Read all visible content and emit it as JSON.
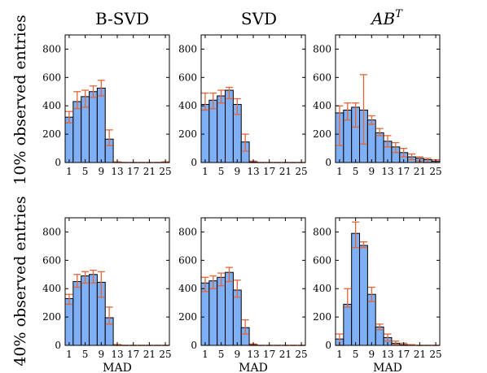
{
  "chart_data": {
    "type": "bar",
    "columns": [
      {
        "title_base": "B-SVD",
        "title_sup": ""
      },
      {
        "title_base": "SVD",
        "title_sup": ""
      },
      {
        "title_base": "AB",
        "title_sup": "T"
      }
    ],
    "rows": [
      {
        "label": "10% observed entries"
      },
      {
        "label": "40% observed entries"
      }
    ],
    "xlabel": "MAD",
    "x_ticks": [
      "1",
      "5",
      "9",
      "13",
      "17",
      "21",
      "25"
    ],
    "y_ticks": [
      "0",
      "200",
      "400",
      "600",
      "800"
    ],
    "ylim": [
      0,
      900
    ],
    "bin_centers": [
      1,
      3,
      5,
      7,
      9,
      11,
      13,
      15,
      17,
      19,
      21,
      23,
      25
    ],
    "colors": {
      "bar": "#7fb0f5",
      "bar_edge": "#000000",
      "error": "#e0663a"
    },
    "panels": [
      {
        "row": 0,
        "col": 0,
        "values": [
          320,
          430,
          465,
          500,
          525,
          165,
          2,
          0,
          0,
          0,
          0,
          0,
          2
        ],
        "err": [
          [
            280,
            360
          ],
          [
            380,
            500
          ],
          [
            390,
            510
          ],
          [
            460,
            540
          ],
          [
            470,
            580
          ],
          [
            120,
            230
          ],
          [
            0,
            5
          ],
          [
            0,
            0
          ],
          [
            0,
            0
          ],
          [
            0,
            0
          ],
          [
            0,
            0
          ],
          [
            0,
            0
          ],
          [
            0,
            5
          ]
        ]
      },
      {
        "row": 0,
        "col": 1,
        "values": [
          410,
          440,
          470,
          510,
          410,
          145,
          5,
          0,
          0,
          0,
          0,
          0,
          0
        ],
        "err": [
          [
            370,
            490
          ],
          [
            380,
            490
          ],
          [
            420,
            510
          ],
          [
            450,
            530
          ],
          [
            340,
            450
          ],
          [
            80,
            200
          ],
          [
            0,
            10
          ],
          [
            0,
            0
          ],
          [
            0,
            0
          ],
          [
            0,
            0
          ],
          [
            0,
            0
          ],
          [
            0,
            0
          ],
          [
            0,
            0
          ]
        ]
      },
      {
        "row": 0,
        "col": 2,
        "values": [
          350,
          370,
          390,
          370,
          300,
          210,
          150,
          110,
          70,
          40,
          30,
          20,
          10
        ],
        "err": [
          [
            120,
            400
          ],
          [
            300,
            420
          ],
          [
            250,
            420
          ],
          [
            130,
            620
          ],
          [
            270,
            330
          ],
          [
            190,
            240
          ],
          [
            110,
            190
          ],
          [
            70,
            140
          ],
          [
            40,
            100
          ],
          [
            20,
            60
          ],
          [
            10,
            40
          ],
          [
            0,
            30
          ],
          [
            0,
            20
          ]
        ]
      },
      {
        "row": 1,
        "col": 0,
        "values": [
          330,
          450,
          490,
          500,
          445,
          195,
          3,
          0,
          0,
          0,
          0,
          0,
          0
        ],
        "err": [
          [
            290,
            360
          ],
          [
            410,
            500
          ],
          [
            440,
            520
          ],
          [
            440,
            530
          ],
          [
            340,
            520
          ],
          [
            150,
            270
          ],
          [
            0,
            6
          ],
          [
            0,
            0
          ],
          [
            0,
            0
          ],
          [
            0,
            0
          ],
          [
            0,
            0
          ],
          [
            0,
            0
          ],
          [
            0,
            0
          ]
        ]
      },
      {
        "row": 1,
        "col": 1,
        "values": [
          440,
          455,
          480,
          515,
          390,
          125,
          5,
          0,
          0,
          0,
          0,
          0,
          0
        ],
        "err": [
          [
            380,
            480
          ],
          [
            400,
            490
          ],
          [
            420,
            510
          ],
          [
            450,
            550
          ],
          [
            340,
            460
          ],
          [
            80,
            180
          ],
          [
            0,
            10
          ],
          [
            0,
            0
          ],
          [
            0,
            0
          ],
          [
            0,
            0
          ],
          [
            0,
            0
          ],
          [
            0,
            0
          ],
          [
            0,
            0
          ]
        ]
      },
      {
        "row": 1,
        "col": 2,
        "values": [
          45,
          290,
          790,
          705,
          360,
          130,
          55,
          15,
          5,
          0,
          0,
          0,
          0
        ],
        "err": [
          [
            0,
            80
          ],
          [
            270,
            400
          ],
          [
            690,
            870
          ],
          [
            690,
            730
          ],
          [
            310,
            410
          ],
          [
            110,
            150
          ],
          [
            30,
            80
          ],
          [
            5,
            30
          ],
          [
            0,
            15
          ],
          [
            0,
            5
          ],
          [
            0,
            0
          ],
          [
            0,
            0
          ],
          [
            0,
            0
          ]
        ]
      }
    ]
  }
}
